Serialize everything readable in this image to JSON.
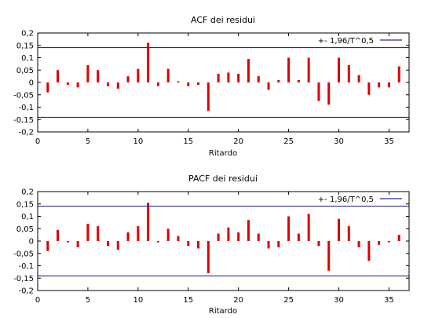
{
  "chart_data": [
    {
      "type": "bar",
      "title": "ACF dei residui",
      "xlabel": "Ritardo",
      "ylabel": "",
      "xlim": [
        0,
        37
      ],
      "ylim": [
        -0.2,
        0.2
      ],
      "xticks": [
        "0",
        "5",
        "10",
        "15",
        "20",
        "25",
        "30",
        "35"
      ],
      "yticks": [
        "0,2",
        "0,15",
        "0,1",
        "0,05",
        "0",
        "-0,05",
        "-0,1",
        "-0,15",
        "-0,2"
      ],
      "grid": false,
      "legend_position": "top-right",
      "legend_label": "+- 1,96/T^0,5",
      "bar_color": "#dd0000",
      "band_color": "#2b2b8c",
      "band": 0.141,
      "x": [
        1,
        2,
        3,
        4,
        5,
        6,
        7,
        8,
        9,
        10,
        11,
        12,
        13,
        14,
        15,
        16,
        17,
        18,
        19,
        20,
        21,
        22,
        23,
        24,
        25,
        26,
        27,
        28,
        29,
        30,
        31,
        32,
        33,
        34,
        35,
        36
      ],
      "values": [
        -0.04,
        0.05,
        -0.01,
        -0.02,
        0.07,
        0.05,
        -0.015,
        -0.025,
        0.025,
        0.055,
        0.16,
        -0.015,
        0.055,
        0.005,
        -0.015,
        -0.01,
        -0.115,
        0.035,
        0.04,
        0.035,
        0.095,
        0.025,
        -0.03,
        0.01,
        0.1,
        0.01,
        0.1,
        -0.075,
        -0.09,
        0.1,
        0.07,
        0.03,
        -0.05,
        -0.02,
        -0.02,
        0.065
      ]
    },
    {
      "type": "bar",
      "title": "PACF dei residui",
      "xlabel": "Ritardo",
      "ylabel": "",
      "xlim": [
        0,
        37
      ],
      "ylim": [
        -0.2,
        0.2
      ],
      "xticks": [
        "0",
        "5",
        "10",
        "15",
        "20",
        "25",
        "30",
        "35"
      ],
      "yticks": [
        "0,2",
        "0,15",
        "0,1",
        "0,05",
        "0",
        "-0,05",
        "-0,1",
        "-0,15",
        "-0,2"
      ],
      "grid": false,
      "legend_position": "top-right",
      "legend_label": "+- 1,96/T^0,5",
      "bar_color": "#dd0000",
      "band_color": "#2b2b8c",
      "band": 0.141,
      "x": [
        1,
        2,
        3,
        4,
        5,
        6,
        7,
        8,
        9,
        10,
        11,
        12,
        13,
        14,
        15,
        16,
        17,
        18,
        19,
        20,
        21,
        22,
        23,
        24,
        25,
        26,
        27,
        28,
        29,
        30,
        31,
        32,
        33,
        34,
        35,
        36
      ],
      "values": [
        -0.04,
        0.045,
        -0.005,
        -0.025,
        0.07,
        0.06,
        -0.02,
        -0.035,
        0.035,
        0.06,
        0.155,
        -0.005,
        0.05,
        0.02,
        -0.02,
        -0.03,
        -0.13,
        0.03,
        0.055,
        0.035,
        0.085,
        0.03,
        -0.03,
        -0.025,
        0.1,
        0.03,
        0.11,
        -0.02,
        -0.12,
        0.09,
        0.06,
        -0.025,
        -0.08,
        -0.015,
        -0.005,
        0.025
      ]
    }
  ]
}
